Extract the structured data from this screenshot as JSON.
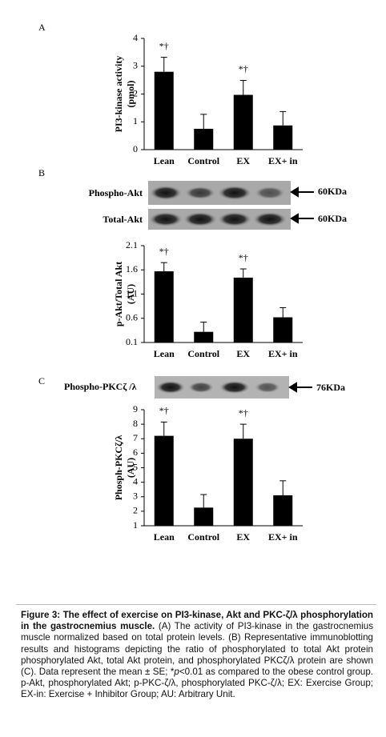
{
  "panel_labels": [
    "A",
    "B",
    "C"
  ],
  "blots": [
    {
      "label": "Phospho-Akt",
      "size": "60KDa"
    },
    {
      "label": "Total-Akt",
      "size": "60KDa"
    },
    {
      "label": "Phospho-PKCζ /λ",
      "size": "76KDa"
    }
  ],
  "chart_data": [
    {
      "type": "bar",
      "ylabel": [
        "PI3-kinase activity",
        "(pmol)"
      ],
      "categories": [
        "Lean",
        "Control",
        "EX",
        "EX+ in"
      ],
      "values": [
        2.8,
        0.75,
        1.97,
        0.87
      ],
      "errors": [
        0.52,
        0.52,
        0.52,
        0.5
      ],
      "value_annotations": [
        "*†",
        null,
        "*†",
        null
      ],
      "color": "#000000",
      "ylim": [
        0,
        4
      ],
      "yticks": [
        0,
        1,
        2,
        3,
        4
      ]
    },
    {
      "type": "bar",
      "ylabel": [
        "p-Akt/Total Akt",
        "(AU)"
      ],
      "categories": [
        "Lean",
        "Control",
        "EX",
        "EX+ in"
      ],
      "values": [
        1.57,
        0.32,
        1.44,
        0.62
      ],
      "errors": [
        0.18,
        0.2,
        0.18,
        0.2
      ],
      "value_annotations": [
        "*†",
        null,
        "*†",
        null
      ],
      "color": "#000000",
      "ylim": [
        0.1,
        2.1
      ],
      "yticks": [
        0.1,
        0.6,
        1.1,
        1.6,
        2.1
      ]
    },
    {
      "type": "bar",
      "ylabel": [
        "Phosph-PKCζ/λ",
        "(AU)"
      ],
      "categories": [
        "Lean",
        "Control",
        "EX",
        "EX+ in"
      ],
      "values": [
        7.2,
        2.25,
        7.0,
        3.1
      ],
      "errors": [
        0.95,
        0.9,
        1.0,
        1.0
      ],
      "value_annotations": [
        "*†",
        null,
        "*†",
        null
      ],
      "color": "#000000",
      "ylim": [
        1,
        9
      ],
      "yticks": [
        1,
        2,
        3,
        4,
        5,
        6,
        7,
        8,
        9
      ]
    }
  ],
  "caption": {
    "bold": "Figure 3: The effect of exercise on PI3-kinase, Akt and PKC-ζ/λ phosphorylation in the gastrocnemius muscle.",
    "text": " (A) The activity of PI3-kinase in the gastrocnemius muscle normalized based on total protein levels. (B) Representative immunoblotting results and histograms depicting the ratio of phosphorylated to total Akt protein phosphorylated Akt, total Akt protein, and phosphorylated PKCζ/λ protein are shown (C). Data represent the mean ± SE; *",
    "italic": "p",
    "text_end": "<0.01 as compared to the obese control group. p-Akt, phosphorylated Akt; p-PKC-ζ/λ, phosphorylated PKC-ζ/λ; EX: Exercise Group; EX-in: Exercise + Inhibitor Group; AU: Arbitrary Unit."
  }
}
